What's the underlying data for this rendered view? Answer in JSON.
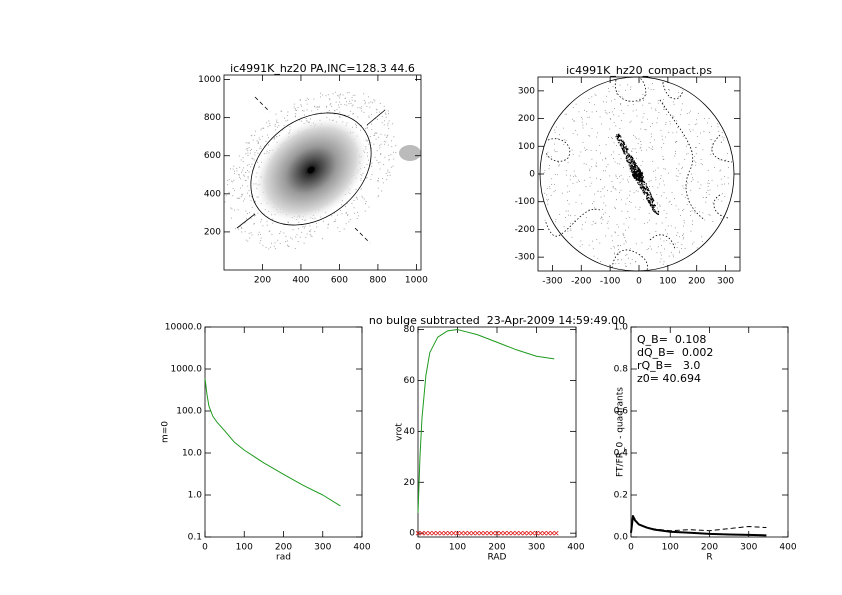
{
  "chart_data": [
    {
      "type": "image",
      "title": "ic4991K_hz20 PA,INC=128.3 44.6",
      "xlim": [
        0,
        1024
      ],
      "ylim": [
        0,
        1024
      ],
      "xticks": [
        200,
        400,
        600,
        800,
        1000
      ],
      "yticks": [
        200,
        400,
        600,
        800,
        1000
      ]
    },
    {
      "type": "image",
      "title": "ic4991K_hz20_compact.ps",
      "xlim": [
        -350,
        350
      ],
      "ylim": [
        -350,
        350
      ],
      "xticks": [
        -300,
        -200,
        -100,
        0,
        100,
        200,
        300
      ],
      "yticks": [
        -300,
        -200,
        -100,
        0,
        100,
        200,
        300
      ]
    },
    {
      "type": "line",
      "xlabel": "rad",
      "ylabel": "m=0",
      "yscale": "log",
      "xlim": [
        0,
        400
      ],
      "ylim": [
        0.1,
        10000
      ],
      "xticks": [
        0,
        100,
        200,
        300,
        400
      ],
      "yticks": [
        0.1,
        {
          "value": 1,
          "label": "1.0"
        },
        {
          "value": 10,
          "label": "10.0"
        },
        {
          "value": 100,
          "label": "100.0"
        },
        {
          "value": 1000,
          "label": "1000.0"
        },
        {
          "value": 10000,
          "label": "10000.0"
        }
      ],
      "series": [
        {
          "color": "#1f9a1f",
          "x": [
            0,
            5,
            10,
            20,
            30,
            50,
            75,
            100,
            150,
            200,
            250,
            300,
            345
          ],
          "values": [
            600,
            250,
            130,
            75,
            55,
            34,
            18,
            11.7,
            5.8,
            3.1,
            1.7,
            1.0,
            0.55
          ]
        }
      ]
    },
    {
      "type": "line",
      "title": "no bulge subtracted  23-Apr-2009 14:59:49.00",
      "xlabel": "RAD",
      "ylabel": "vrot",
      "xlim": [
        0,
        400
      ],
      "ylim": [
        -1.5,
        81
      ],
      "xticks": [
        0,
        100,
        200,
        300,
        400
      ],
      "yticks": [
        0,
        20,
        40,
        60,
        80
      ],
      "series": [
        {
          "color": "#1f9a1f",
          "x": [
            0,
            5,
            10,
            20,
            30,
            50,
            75,
            100,
            150,
            200,
            250,
            300,
            345
          ],
          "values": [
            8,
            30,
            45,
            62,
            71,
            77,
            79.5,
            80,
            78,
            75,
            72,
            69.5,
            68.5
          ]
        },
        {
          "color": "#e02020",
          "marker": true,
          "x": [
            0,
            10,
            20,
            30,
            40,
            50,
            60,
            70,
            80,
            90,
            100,
            110,
            120,
            130,
            140,
            150,
            160,
            170,
            180,
            190,
            200,
            210,
            220,
            230,
            240,
            250,
            260,
            270,
            280,
            290,
            300,
            310,
            320,
            330,
            340,
            350
          ],
          "values": [
            0,
            0,
            0,
            0,
            0,
            0,
            0,
            0,
            0,
            0,
            0,
            0,
            0,
            0,
            0,
            0,
            0,
            0,
            0,
            0,
            0,
            0,
            0,
            0,
            0,
            0,
            0,
            0,
            0,
            0,
            0,
            0,
            0,
            0,
            0,
            0
          ]
        }
      ]
    },
    {
      "type": "line",
      "xlabel": "R",
      "ylabel": "FT/FR_0 - quadrants",
      "xlim": [
        0,
        400
      ],
      "ylim": [
        0,
        1
      ],
      "xticks": [
        0,
        100,
        200,
        300,
        400
      ],
      "yticks": [
        {
          "value": 0,
          "label": "0.0"
        },
        0.2,
        0.4,
        0.6,
        0.8,
        {
          "value": 1,
          "label": "1.0"
        }
      ],
      "annotations": [
        "Q_B=  0.108",
        "dQ_B=  0.002",
        "rQ_B=   3.0",
        "z0= 40.694"
      ],
      "series": [
        {
          "color": "#000000",
          "width": 2,
          "x": [
            0,
            5,
            10,
            20,
            40,
            60,
            100,
            150,
            200,
            250,
            300,
            345
          ],
          "values": [
            0.02,
            0.1,
            0.08,
            0.06,
            0.045,
            0.035,
            0.025,
            0.02,
            0.015,
            0.012,
            0.01,
            0.008
          ]
        },
        {
          "color": "#000000",
          "dash": true,
          "x": [
            0,
            5,
            20,
            50,
            100,
            150,
            200,
            250,
            300,
            345
          ],
          "values": [
            0.02,
            0.1,
            0.06,
            0.04,
            0.03,
            0.035,
            0.03,
            0.04,
            0.05,
            0.045
          ]
        }
      ]
    }
  ]
}
